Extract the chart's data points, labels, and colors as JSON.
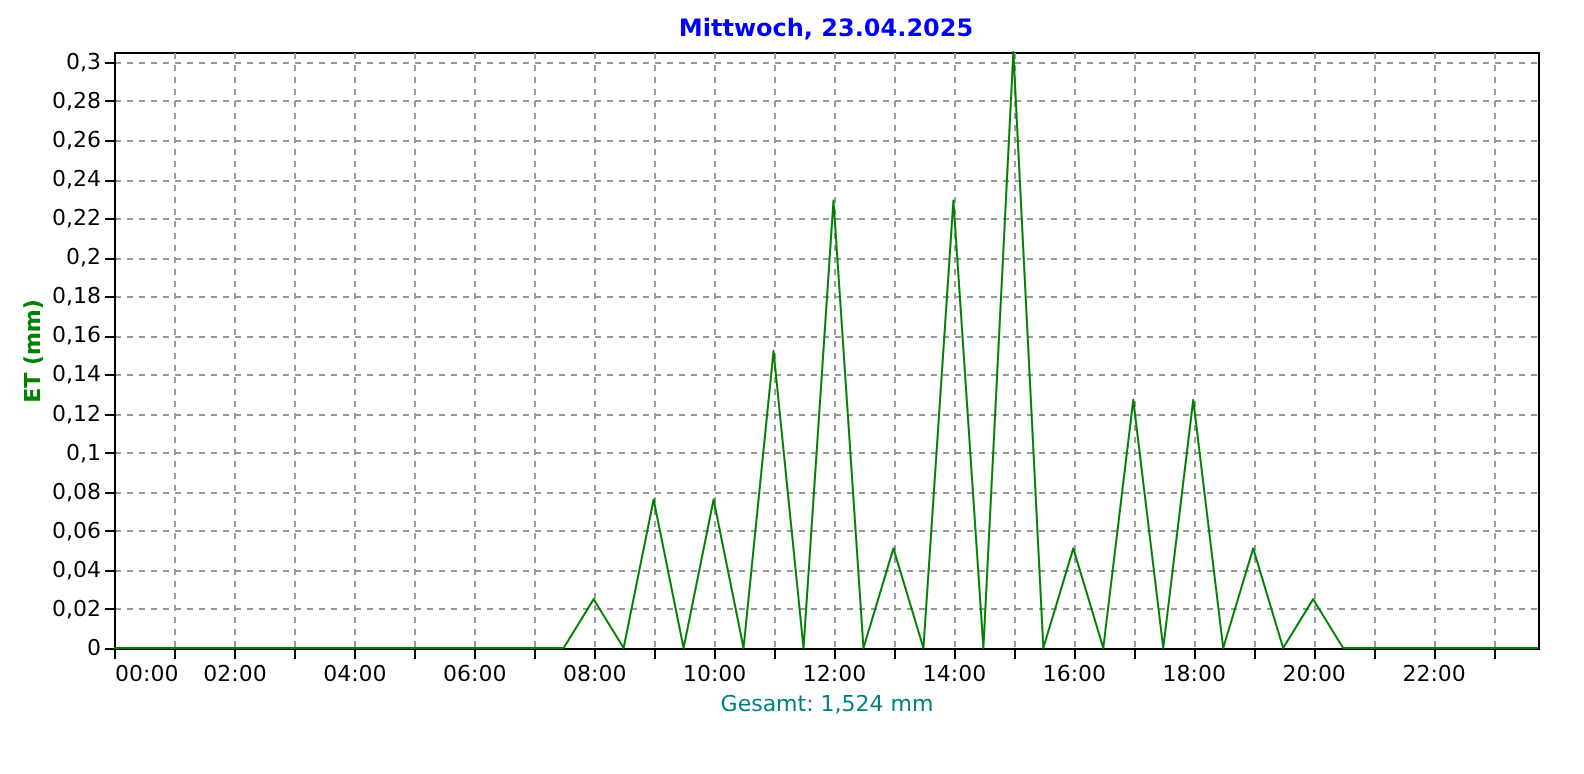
{
  "chart_data": {
    "type": "line",
    "title": "Mittwoch, 23.04.2025",
    "xlabel": "Gesamt: 1,524 mm",
    "ylabel": "ET  (mm)",
    "x": [
      0,
      7.5,
      8,
      8.5,
      9,
      9.5,
      10,
      10.5,
      11,
      11.5,
      12,
      12.5,
      13,
      13.5,
      14,
      14.5,
      15,
      15.5,
      16,
      16.5,
      17,
      17.5,
      18,
      18.5,
      19,
      19.5,
      20,
      20.5,
      23.75
    ],
    "series": [
      {
        "color": "#008000",
        "values": [
          0,
          0,
          0.025,
          0,
          0.076,
          0,
          0.076,
          0,
          0.152,
          0,
          0.229,
          0,
          0.051,
          0,
          0.229,
          0,
          0.305,
          0,
          0.051,
          0,
          0.127,
          0,
          0.127,
          0,
          0.051,
          0,
          0.025,
          0,
          0
        ]
      }
    ],
    "xlim": [
      0,
      23.75
    ],
    "xticks": [
      {
        "value": 0,
        "label": "00:00"
      },
      {
        "value": 1,
        "label": null
      },
      {
        "value": 2,
        "label": "02:00"
      },
      {
        "value": 3,
        "label": null
      },
      {
        "value": 4,
        "label": "04:00"
      },
      {
        "value": 5,
        "label": null
      },
      {
        "value": 6,
        "label": "06:00"
      },
      {
        "value": 7,
        "label": null
      },
      {
        "value": 8,
        "label": "08:00"
      },
      {
        "value": 9,
        "label": null
      },
      {
        "value": 10,
        "label": "10:00"
      },
      {
        "value": 11,
        "label": null
      },
      {
        "value": 12,
        "label": "12:00"
      },
      {
        "value": 13,
        "label": null
      },
      {
        "value": 14,
        "label": "14:00"
      },
      {
        "value": 15,
        "label": null
      },
      {
        "value": 16,
        "label": "16:00"
      },
      {
        "value": 17,
        "label": null
      },
      {
        "value": 18,
        "label": "18:00"
      },
      {
        "value": 19,
        "label": null
      },
      {
        "value": 20,
        "label": "20:00"
      },
      {
        "value": 21,
        "label": null
      },
      {
        "value": 22,
        "label": "22:00"
      },
      {
        "value": 23,
        "label": null
      }
    ],
    "ylim": [
      0,
      0.305
    ],
    "yticks": [
      0,
      {
        "value": 0.02,
        "label": "0,02"
      },
      {
        "value": 0.04,
        "label": "0,04"
      },
      {
        "value": 0.06,
        "label": "0,06"
      },
      {
        "value": 0.08,
        "label": "0,08"
      },
      {
        "value": 0.1,
        "label": "0,1"
      },
      {
        "value": 0.12,
        "label": "0,12"
      },
      {
        "value": 0.14,
        "label": "0,14"
      },
      {
        "value": 0.16,
        "label": "0,16"
      },
      {
        "value": 0.18,
        "label": "0,18"
      },
      {
        "value": 0.2,
        "label": "0,2"
      },
      {
        "value": 0.22,
        "label": "0,22"
      },
      {
        "value": 0.24,
        "label": "0,24"
      },
      {
        "value": 0.26,
        "label": "0,26"
      },
      {
        "value": 0.28,
        "label": "0,28"
      },
      {
        "value": 0.3,
        "label": "0,3"
      }
    ],
    "grid": true,
    "line_style": "solid",
    "marker": "none"
  }
}
